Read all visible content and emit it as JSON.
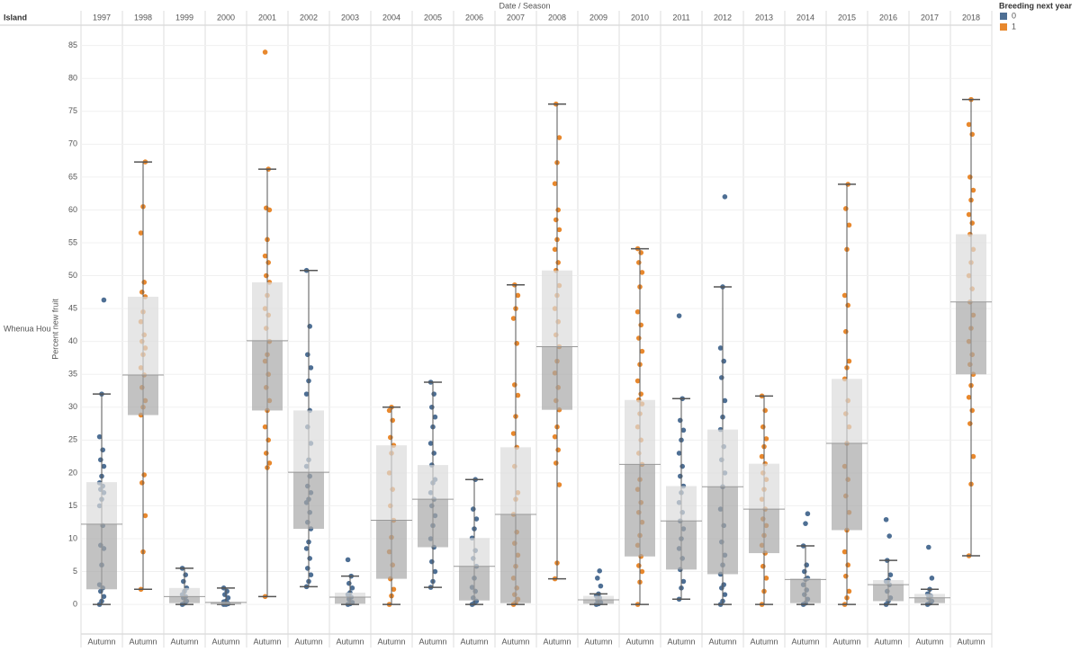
{
  "chart_data": {
    "type": "box",
    "title": "Date / Season",
    "row_header": "Island",
    "row_label": "Whenua Hou",
    "y_label": "Percent new fruit",
    "categories": [
      "1997",
      "1998",
      "1999",
      "2000",
      "2001",
      "2002",
      "2003",
      "2004",
      "2005",
      "2006",
      "2007",
      "2008",
      "2009",
      "2010",
      "2011",
      "2012",
      "2013",
      "2014",
      "2015",
      "2016",
      "2017",
      "2018"
    ],
    "seasons": [
      "Autumn",
      "Autumn",
      "Autumn",
      "Autumn",
      "Autumn",
      "Autumn",
      "Autumn",
      "Autumn",
      "Autumn",
      "Autumn",
      "Autumn",
      "Autumn",
      "Autumn",
      "Autumn",
      "Autumn",
      "Autumn",
      "Autumn",
      "Autumn",
      "Autumn",
      "Autumn",
      "Autumn",
      "Autumn"
    ],
    "legend_title": "Breeding next year",
    "series": [
      {
        "name": "0",
        "color": "#4e6f94",
        "boxes": [
          {
            "min": 0,
            "q1": 2.3,
            "median": 12.2,
            "q3": 18.6,
            "max": 32,
            "points": [
              0,
              0.5,
              1.2,
              2,
              2.5,
              3,
              6,
              8.5,
              9,
              12,
              15,
              16,
              17,
              17.5,
              18,
              18.5,
              19.5,
              21,
              22,
              23.5,
              25.5,
              32,
              46.3
            ]
          },
          null,
          {
            "min": 0,
            "q1": 0.2,
            "median": 1.2,
            "q3": 2.5,
            "max": 5.5,
            "points": [
              0,
              0.2,
              0.5,
              1,
              1.2,
              1.5,
              2,
              2.5,
              3.5,
              4.5,
              5.5
            ]
          },
          {
            "min": 0,
            "q1": 0,
            "median": 0.3,
            "q3": 0.4,
            "max": 2.5,
            "points": [
              0,
              0,
              0.1,
              0.2,
              0.3,
              0.4,
              0.5,
              1,
              1.5,
              2,
              2.5
            ]
          },
          null,
          {
            "min": 2.7,
            "q1": 11.5,
            "median": 20.1,
            "q3": 29.5,
            "max": 50.8,
            "points": [
              2.7,
              3.5,
              4.5,
              5.5,
              7,
              8.5,
              9.5,
              11.5,
              12.5,
              14,
              15.5,
              16,
              17,
              18,
              19.5,
              21,
              22,
              24.5,
              27,
              29.5,
              32,
              34,
              36,
              38,
              42.3,
              50.8
            ]
          },
          {
            "min": 0,
            "q1": 0.1,
            "median": 1.1,
            "q3": 1.8,
            "max": 4.3,
            "points": [
              0,
              0.1,
              0.3,
              0.8,
              1.1,
              1.5,
              1.8,
              2.5,
              3.2,
              4.3,
              6.8
            ]
          },
          null,
          {
            "min": 2.6,
            "q1": 8.7,
            "median": 16,
            "q3": 21.2,
            "max": 33.8,
            "points": [
              2.6,
              3.5,
              5,
              6.5,
              8.7,
              10,
              12,
              13.5,
              15,
              16,
              17,
              18.5,
              19,
              21.2,
              23,
              24.5,
              27,
              28.5,
              30,
              32,
              33.8
            ]
          },
          {
            "min": 0,
            "q1": 0.6,
            "median": 5.8,
            "q3": 10.1,
            "max": 19,
            "points": [
              0,
              0.2,
              0.5,
              1,
              2,
              2.6,
              4,
              5.8,
              7,
              8.2,
              10.1,
              11.5,
              13,
              14.5,
              19
            ]
          },
          null,
          null,
          {
            "min": 0,
            "q1": 0.1,
            "median": 0.7,
            "q3": 1.3,
            "max": 1.6,
            "points": [
              0,
              0.1,
              0.3,
              0.7,
              1,
              1.3,
              1.6,
              2.8,
              4,
              5.1
            ]
          },
          null,
          {
            "min": 0.8,
            "q1": 5.3,
            "median": 12.7,
            "q3": 18,
            "max": 31.3,
            "points": [
              0.8,
              2.5,
              3.5,
              5.3,
              7,
              8.5,
              10,
              11.5,
              12.7,
              14,
              15.5,
              17,
              18,
              19.5,
              21,
              23,
              25,
              26.5,
              28,
              31.3,
              43.9
            ]
          },
          {
            "min": 0,
            "q1": 4.6,
            "median": 17.9,
            "q3": 26.6,
            "max": 48.3,
            "points": [
              0,
              0.5,
              1.5,
              2.5,
              3,
              4.6,
              6,
              7.5,
              9.5,
              12,
              14.5,
              17.9,
              20,
              22,
              24,
              26.6,
              28.5,
              31,
              34.5,
              37,
              39,
              48.3,
              62
            ]
          },
          null,
          {
            "min": 0,
            "q1": 0.2,
            "median": 3.8,
            "q3": 4,
            "max": 8.9,
            "points": [
              0,
              0.2,
              0.8,
              1.5,
              2.2,
              3,
              3.8,
              4,
              5,
              6,
              8.9,
              12.3,
              13.8
            ]
          },
          null,
          {
            "min": 0,
            "q1": 0.5,
            "median": 3,
            "q3": 3.7,
            "max": 6.7,
            "points": [
              0,
              0.5,
              1,
              2,
              3,
              3.5,
              3.7,
              4.5,
              6.7,
              10.4,
              12.9
            ]
          },
          {
            "min": 0,
            "q1": 0.2,
            "median": 1,
            "q3": 1.6,
            "max": 2.3,
            "points": [
              0,
              0.2,
              0.5,
              1,
              1.3,
              1.6,
              2.3,
              4,
              8.7
            ]
          },
          null
        ]
      },
      {
        "name": "1",
        "color": "#e8882d",
        "boxes": [
          null,
          {
            "min": 2.3,
            "q1": 28.8,
            "median": 34.9,
            "q3": 46.8,
            "max": 67.3,
            "points": [
              2.3,
              8,
              13.5,
              18.5,
              19.7,
              28.8,
              30,
              31,
              33,
              34.9,
              36,
              38,
              39,
              40,
              41,
              43,
              44.5,
              46.8,
              47.5,
              49,
              56.5,
              60.5,
              67.3
            ]
          },
          null,
          null,
          {
            "min": 1.2,
            "q1": 29.5,
            "median": 40.1,
            "q3": 49,
            "max": 66.2,
            "points": [
              1.2,
              20.8,
              21.5,
              23,
              25,
              27,
              29.5,
              31,
              33,
              35,
              37,
              38,
              40,
              42,
              44,
              45,
              47,
              49,
              50,
              52,
              53,
              55.5,
              60,
              60.3,
              66.2,
              84
            ]
          },
          null,
          null,
          {
            "min": 0,
            "q1": 3.9,
            "median": 12.8,
            "q3": 24.2,
            "max": 30,
            "points": [
              0,
              1.3,
              2.3,
              3.9,
              6,
              8,
              10.2,
              12.8,
              15,
              17.5,
              20,
              23,
              24.2,
              25.4,
              28,
              29.5,
              30
            ]
          },
          null,
          null,
          {
            "min": 0,
            "q1": 0.2,
            "median": 13.7,
            "q3": 23.9,
            "max": 48.6,
            "points": [
              0,
              0.3,
              0.8,
              1.5,
              2.5,
              4,
              5.8,
              7.5,
              9.3,
              11,
              13.7,
              16,
              17,
              21,
              23.9,
              26,
              28.6,
              31.8,
              33.4,
              39.7,
              43.5,
              45,
              47,
              48.6
            ]
          },
          {
            "min": 3.9,
            "q1": 29.6,
            "median": 39.2,
            "q3": 50.8,
            "max": 76.1,
            "points": [
              3.9,
              6.3,
              18.2,
              21.5,
              23.5,
              25.5,
              27,
              29.6,
              31,
              33,
              35.2,
              37,
              39.2,
              41,
              43,
              45,
              47,
              48.5,
              50.8,
              52,
              54,
              55.5,
              57,
              58.5,
              60,
              64,
              67.2,
              71,
              76.1
            ]
          },
          null,
          {
            "min": 0,
            "q1": 7.3,
            "median": 21.3,
            "q3": 31.1,
            "max": 54.1,
            "points": [
              0,
              3.4,
              5,
              5.9,
              7.3,
              9,
              10.5,
              12.5,
              14,
              15.5,
              17.5,
              19,
              21.3,
              23,
              25,
              27,
              29,
              30.5,
              31.1,
              32,
              34,
              36.5,
              38.5,
              40.5,
              42.5,
              44.5,
              48.3,
              50.5,
              52,
              53.5,
              54.1
            ]
          },
          null,
          null,
          {
            "min": 0,
            "q1": 7.8,
            "median": 14.5,
            "q3": 21.4,
            "max": 31.7,
            "points": [
              0,
              2,
              4,
              5.8,
              7.8,
              9,
              10.5,
              12,
              13,
              14.5,
              16,
              17.5,
              19,
              20,
              21.4,
              22.5,
              24,
              25.2,
              27,
              29.5,
              31.7
            ]
          },
          null,
          {
            "min": 0,
            "q1": 11.3,
            "median": 24.5,
            "q3": 34.3,
            "max": 63.9,
            "points": [
              0,
              1,
              2,
              4.3,
              6,
              8,
              11.3,
              14,
              16.5,
              19,
              21,
              24.5,
              27,
              29,
              31,
              34.3,
              36,
              37,
              41.5,
              45.5,
              47,
              54,
              57.7,
              60.2,
              63.9
            ]
          },
          null,
          null,
          {
            "min": 7.4,
            "q1": 35,
            "median": 46,
            "q3": 56.3,
            "max": 76.8,
            "points": [
              7.4,
              18.3,
              22.5,
              27.5,
              29.5,
              31.5,
              33.3,
              35,
              36.5,
              38,
              40,
              42,
              44,
              46,
              48,
              50,
              52,
              54,
              56.3,
              58,
              59.3,
              61.5,
              63,
              65,
              71.5,
              73,
              76.8
            ]
          }
        ]
      }
    ],
    "ylim": [
      -4.5,
      88.1
    ],
    "yticks": [
      0,
      5,
      10,
      15,
      20,
      25,
      30,
      35,
      40,
      45,
      50,
      55,
      60,
      65,
      70,
      75,
      80,
      85
    ],
    "grid": true
  }
}
